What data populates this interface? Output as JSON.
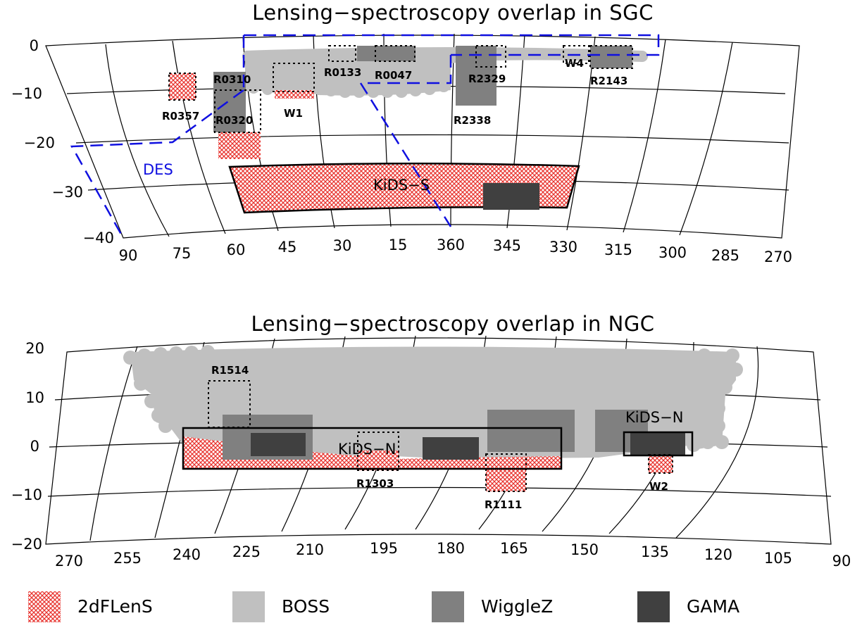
{
  "colors": {
    "twodflens": "#e8342f",
    "boss": "#c0c0c0",
    "wigglez": "#808080",
    "gama": "#404040",
    "des": "#1010e0"
  },
  "sgc": {
    "title": "Lensing−spectroscopy overlap in SGC",
    "dec_ticks": [
      "0",
      "−10",
      "−20",
      "−30",
      "−40"
    ],
    "ra_ticks": [
      "90",
      "75",
      "60",
      "45",
      "30",
      "15",
      "360",
      "345",
      "330",
      "315",
      "300",
      "285",
      "270"
    ],
    "fields": [
      "R0357",
      "R0310",
      "R0320",
      "W1",
      "R0133",
      "R0047",
      "R2329",
      "R2338",
      "W4",
      "R2143"
    ],
    "kids_label": "KiDS−S",
    "des_label": "DES"
  },
  "ngc": {
    "title": "Lensing−spectroscopy overlap in NGC",
    "dec_ticks": [
      "20",
      "10",
      "0",
      "−10",
      "−20"
    ],
    "ra_ticks": [
      "270",
      "255",
      "240",
      "225",
      "210",
      "195",
      "180",
      "165",
      "150",
      "135",
      "120",
      "105",
      "90"
    ],
    "fields": [
      "R1514",
      "R1303",
      "R1111",
      "W2"
    ],
    "kids_labels": [
      "KiDS−N",
      "KiDS−N"
    ]
  },
  "legend": [
    {
      "label": "2dFLenS",
      "pattern": "hatch"
    },
    {
      "label": "BOSS",
      "pattern": "solid-light"
    },
    {
      "label": "WiggleZ",
      "pattern": "solid-mid"
    },
    {
      "label": "GAMA",
      "pattern": "solid-dark"
    }
  ]
}
